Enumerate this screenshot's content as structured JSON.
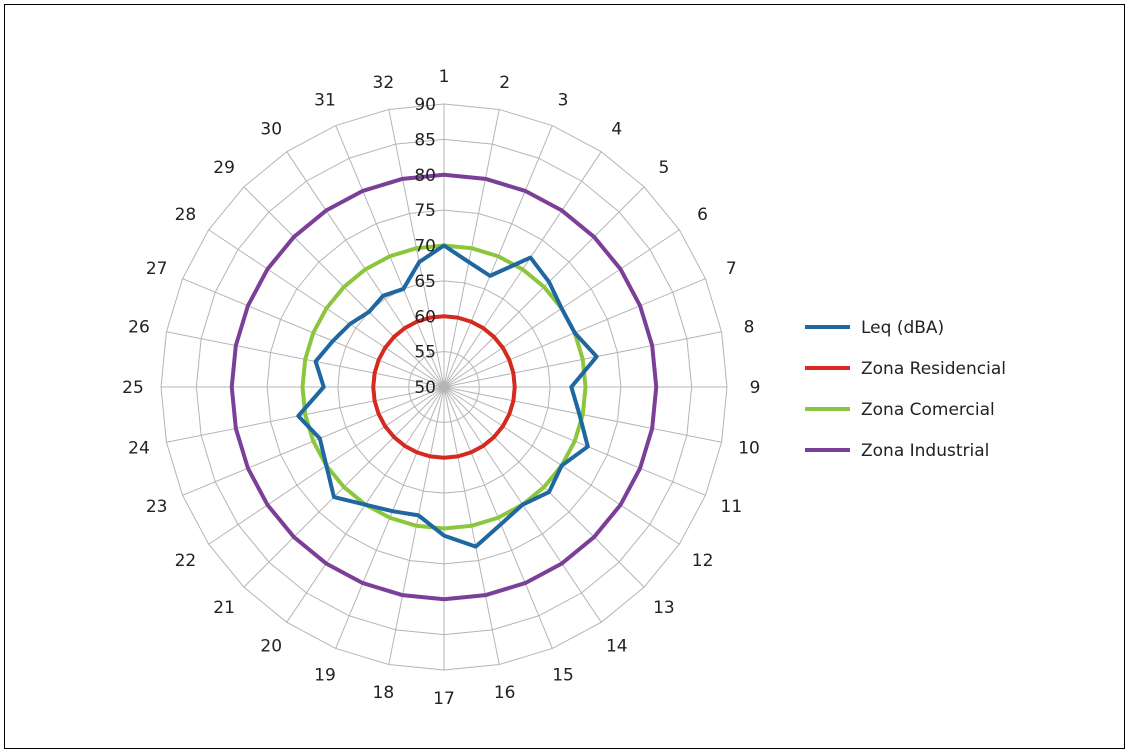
{
  "chart_data": {
    "type": "radar",
    "categories": [
      "1",
      "2",
      "3",
      "4",
      "5",
      "6",
      "7",
      "8",
      "9",
      "10",
      "11",
      "12",
      "13",
      "14",
      "15",
      "16",
      "17",
      "18",
      "19",
      "20",
      "21",
      "22",
      "23",
      "24",
      "25",
      "26",
      "27",
      "28",
      "29",
      "30",
      "31",
      "32"
    ],
    "rlim": [
      50,
      90
    ],
    "ticks": [
      "50",
      "55",
      "60",
      "65",
      "70",
      "75",
      "80",
      "85",
      "90"
    ],
    "grid": true,
    "legend_position": "right",
    "series": [
      {
        "name": "Leq (dBA)",
        "color": "#1f67a0",
        "values": [
          70,
          68,
          67,
          72,
          71,
          70,
          70,
          72,
          68,
          69.5,
          72,
          70,
          71,
          70,
          71,
          73,
          71,
          68.5,
          69,
          70,
          72,
          70,
          69,
          71,
          67,
          68.5,
          67,
          66,
          65,
          65.5,
          65,
          68
        ]
      },
      {
        "name": "Zona Residencial",
        "color": "#d42a20",
        "values": [
          60,
          60,
          60,
          60,
          60,
          60,
          60,
          60,
          60,
          60,
          60,
          60,
          60,
          60,
          60,
          60,
          60,
          60,
          60,
          60,
          60,
          60,
          60,
          60,
          60,
          60,
          60,
          60,
          60,
          60,
          60,
          60
        ]
      },
      {
        "name": "Zona Comercial",
        "color": "#8cc63e",
        "values": [
          70,
          70,
          70,
          70,
          70,
          70,
          70,
          70,
          70,
          70,
          70,
          70,
          70,
          70,
          70,
          70,
          70,
          70,
          70,
          70,
          70,
          70,
          70,
          70,
          70,
          70,
          70,
          70,
          70,
          70,
          70,
          70
        ]
      },
      {
        "name": "Zona Industrial",
        "color": "#7b3f98",
        "values": [
          80,
          80,
          80,
          80,
          80,
          80,
          80,
          80,
          80,
          80,
          80,
          80,
          80,
          80,
          80,
          80,
          80,
          80,
          80,
          80,
          80,
          80,
          80,
          80,
          80,
          80,
          80,
          80,
          80,
          80,
          80,
          80
        ]
      }
    ]
  }
}
